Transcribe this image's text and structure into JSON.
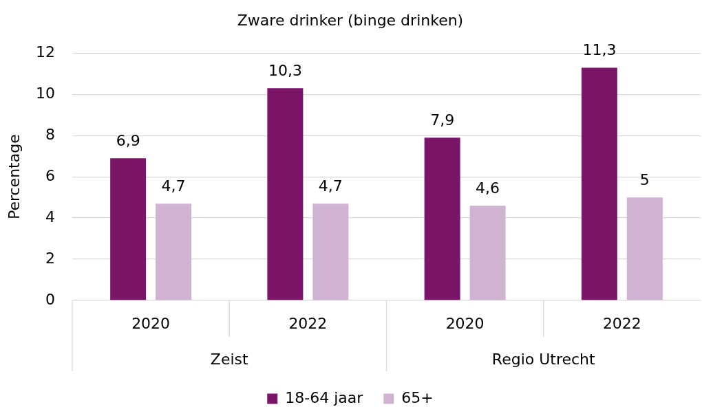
{
  "chart_data": {
    "type": "bar",
    "title": "Zware drinker (binge drinken)",
    "ylabel": "Percentage",
    "categories": [
      "2020",
      "2022",
      "2020",
      "2022"
    ],
    "annotations": [
      "Zeist",
      "Regio Utrecht"
    ],
    "series": [
      {
        "name": "18-64 jaar",
        "color": "#7a1567",
        "values": [
          6.9,
          10.3,
          7.9,
          11.3
        ],
        "value_labels": [
          "6,9",
          "10,3",
          "7,9",
          "11,3"
        ]
      },
      {
        "name": "65+",
        "color": "#cfb3d1",
        "values": [
          4.7,
          4.7,
          4.6,
          5
        ],
        "value_labels": [
          "4,7",
          "4,7",
          "4,6",
          "5"
        ]
      }
    ],
    "ylim": [
      0,
      12
    ],
    "yticks": [
      0,
      2,
      4,
      6,
      8,
      10,
      12
    ],
    "grid": "y",
    "legend": "bottom"
  }
}
